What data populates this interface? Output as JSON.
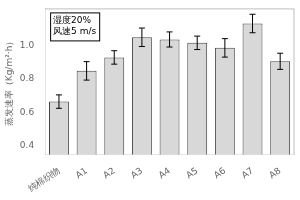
{
  "chart_data": {
    "type": "bar",
    "categories": [
      "纯棉织物",
      "A1",
      "A2",
      "A3",
      "A4",
      "A5",
      "A6",
      "A7",
      "A8"
    ],
    "values": [
      0.665,
      0.848,
      0.928,
      1.048,
      1.035,
      1.015,
      0.985,
      1.13,
      0.905
    ],
    "errors": [
      0.04,
      0.055,
      0.04,
      0.055,
      0.045,
      0.04,
      0.055,
      0.055,
      0.048
    ],
    "ylabel": "蒸发速率（Kg/m²·h）",
    "ylim": [
      0.35,
      1.22
    ],
    "yticks": [
      0.4,
      0.6,
      0.8,
      {
        "value": 1.0,
        "label": "1.0"
      }
    ],
    "annotations": [
      "湿度20%",
      "风速5 m/s"
    ],
    "color": "#d8d8d8",
    "grid": false
  }
}
